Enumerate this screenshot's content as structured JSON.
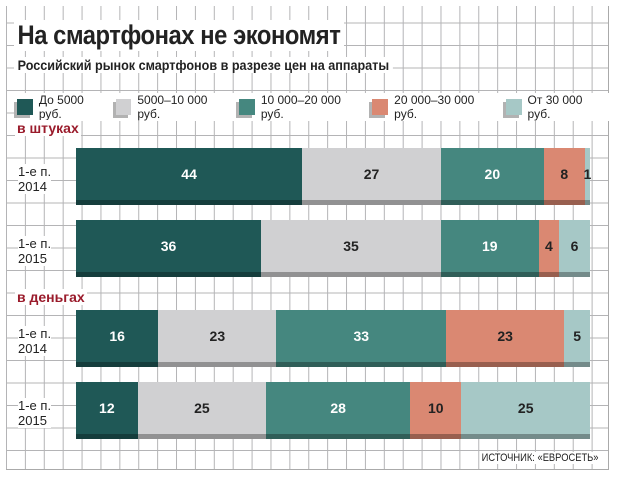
{
  "chart_data": {
    "type": "bar",
    "orientation": "horizontal-stacked-percent",
    "title": "На смартфонах не экономят",
    "subtitle": "Российский рынок смартфонов в разрезе цен на аппараты",
    "legend": [
      "До 5000 руб.",
      "5000–10 000 руб.",
      "10 000–20 000 руб.",
      "20 000–30 000 руб.",
      "От 30 000 руб."
    ],
    "colors": [
      "#1f5856",
      "#d0d0d2",
      "#45877f",
      "#da8872",
      "#a6c8c6"
    ],
    "groups": [
      {
        "label": "в штуках",
        "rows": [
          {
            "category": "1-е п. 2014",
            "values": [
              44,
              27,
              20,
              8,
              1
            ]
          },
          {
            "category": "1-е п. 2015",
            "values": [
              36,
              35,
              19,
              4,
              6
            ]
          }
        ]
      },
      {
        "label": "в деньгах",
        "rows": [
          {
            "category": "1-е п. 2014",
            "values": [
              16,
              23,
              33,
              23,
              5
            ]
          },
          {
            "category": "1-е п. 2015",
            "values": [
              12,
              25,
              28,
              10,
              25
            ]
          }
        ]
      }
    ],
    "source": "ИСТОЧНИК: «ЕВРОСЕТЬ»"
  }
}
